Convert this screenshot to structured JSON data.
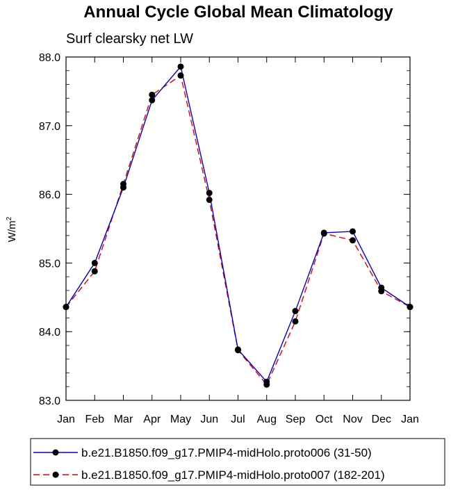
{
  "chart_data": {
    "type": "line",
    "title": "Annual Cycle Global Mean Climatology",
    "subtitle": "Surf clearsky net LW",
    "ylabel_base": "W/m",
    "ylabel_sup": "2",
    "xlabel": "",
    "categories": [
      "Jan",
      "Feb",
      "Mar",
      "Apr",
      "May",
      "Jun",
      "Jul",
      "Aug",
      "Sep",
      "Oct",
      "Nov",
      "Dec",
      "Jan"
    ],
    "ylim": [
      83.0,
      88.0
    ],
    "yticks": [
      "83.0",
      "84.0",
      "85.0",
      "86.0",
      "87.0",
      "88.0"
    ],
    "grid": false,
    "legend_position": "bottom",
    "series": [
      {
        "name": "b.e21.B1850.f09_g17.PMIP4-midHolo.proto006 (31-50)",
        "color": "#0000cc",
        "dash": "solid",
        "marker": "filled-circle",
        "values": [
          84.36,
          85.0,
          86.1,
          87.37,
          87.86,
          86.02,
          83.74,
          83.27,
          84.3,
          85.44,
          85.46,
          84.64,
          84.36
        ]
      },
      {
        "name": "b.e21.B1850.f09_g17.PMIP4-midHolo.proto007 (182-201)",
        "color": "#e00000",
        "dash": "dashed",
        "marker": "filled-circle",
        "values": [
          84.36,
          84.88,
          86.15,
          87.45,
          87.73,
          85.92,
          83.73,
          83.23,
          84.15,
          85.43,
          85.33,
          84.59,
          84.36
        ]
      }
    ]
  }
}
